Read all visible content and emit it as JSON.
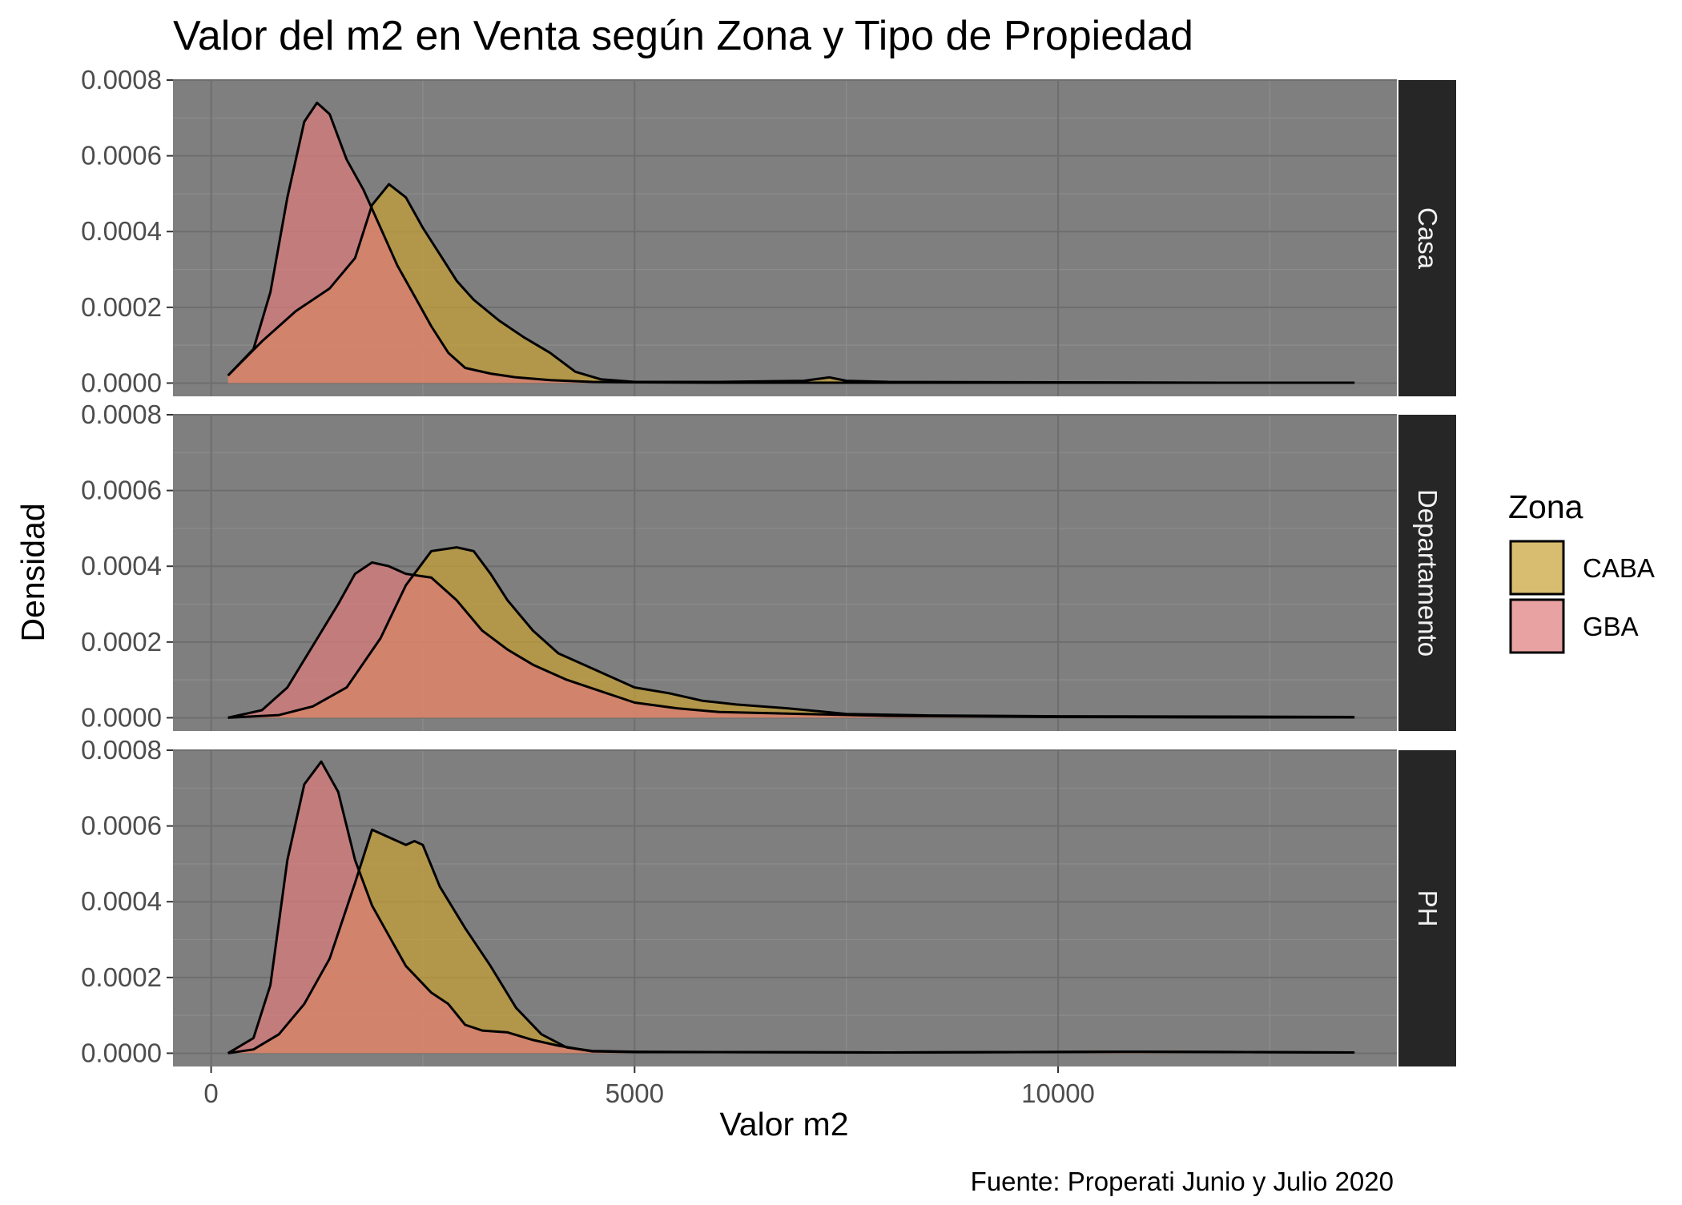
{
  "chart_data": {
    "type": "area",
    "title": "Valor del m2 en Venta según Zona y Tipo de Propiedad",
    "xlabel": "Valor m2",
    "ylabel": "Densidad",
    "caption": "Fuente: Properati Junio y Julio 2020",
    "xlim": [
      -450,
      14000
    ],
    "ylim": [
      -3.5e-05,
      0.0008
    ],
    "x_ticks": [
      0,
      5000,
      10000
    ],
    "x_tick_labels": [
      "0",
      "5000",
      "10000"
    ],
    "y_ticks": [
      0,
      0.0002,
      0.0004,
      0.0006,
      0.0008
    ],
    "y_tick_labels": [
      "0.0000",
      "0.0002",
      "0.0004",
      "0.0006",
      "0.0008"
    ],
    "grid": true,
    "legend": {
      "title": "Zona",
      "position": "right",
      "entries": [
        {
          "label": "CABA",
          "color": "#c8a032"
        },
        {
          "label": "GBA",
          "color": "#e07a7a"
        }
      ]
    },
    "colors": {
      "panel_background": "#7f7f7f",
      "strip_background": "#262626",
      "outline": "#000000",
      "fill_opacity": 0.7
    },
    "facets": [
      {
        "label": "Casa",
        "series": [
          {
            "name": "CABA",
            "x": [
              200,
              600,
              1000,
              1400,
              1700,
              1900,
              2100,
              2300,
              2500,
              2700,
              2900,
              3100,
              3400,
              3700,
              4000,
              4300,
              4600,
              5000,
              6000,
              7000,
              7300,
              7500,
              8000,
              10000,
              12000,
              13500
            ],
            "y": [
              2e-05,
              0.00011,
              0.00019,
              0.00025,
              0.00033,
              0.00047,
              0.000525,
              0.00049,
              0.00041,
              0.00034,
              0.00027,
              0.00022,
              0.000165,
              0.00012,
              8e-05,
              3e-05,
              1e-05,
              3e-06,
              3e-06,
              6e-06,
              1.5e-05,
              6e-06,
              3e-06,
              2e-06,
              1e-06,
              1e-06
            ]
          },
          {
            "name": "GBA",
            "x": [
              200,
              500,
              700,
              900,
              1100,
              1250,
              1400,
              1600,
              1800,
              2000,
              2200,
              2400,
              2600,
              2800,
              3000,
              3300,
              3600,
              4000,
              4500,
              5000,
              6000,
              8000,
              10000,
              13500
            ],
            "y": [
              2e-05,
              9e-05,
              0.00024,
              0.00049,
              0.00069,
              0.00074,
              0.00071,
              0.00059,
              0.00051,
              0.00041,
              0.00031,
              0.00023,
              0.00015,
              8e-05,
              4e-05,
              2.5e-05,
              1.5e-05,
              8e-06,
              3e-06,
              2e-06,
              1e-06,
              1e-06,
              1e-06,
              1e-06
            ]
          }
        ]
      },
      {
        "label": "Departamento",
        "series": [
          {
            "name": "CABA",
            "x": [
              200,
              800,
              1200,
              1600,
              2000,
              2300,
              2600,
              2900,
              3100,
              3300,
              3500,
              3800,
              4100,
              4500,
              5000,
              5400,
              5800,
              6200,
              6800,
              7500,
              8500,
              10000,
              12000,
              13500
            ],
            "y": [
              0.0,
              7e-06,
              3e-05,
              8e-05,
              0.00021,
              0.00035,
              0.00044,
              0.00045,
              0.00044,
              0.00038,
              0.00031,
              0.00023,
              0.00017,
              0.00013,
              8e-05,
              6.5e-05,
              4.5e-05,
              3.5e-05,
              2.5e-05,
              1e-05,
              6e-06,
              4e-06,
              3e-06,
              2e-06
            ]
          },
          {
            "name": "GBA",
            "x": [
              200,
              600,
              900,
              1200,
              1500,
              1700,
              1900,
              2100,
              2300,
              2600,
              2900,
              3200,
              3500,
              3800,
              4200,
              4600,
              5000,
              5500,
              6000,
              7000,
              8000,
              10000,
              12000,
              13500
            ],
            "y": [
              0.0,
              2e-05,
              8e-05,
              0.00019,
              0.0003,
              0.00038,
              0.00041,
              0.0004,
              0.00038,
              0.00037,
              0.00031,
              0.00023,
              0.00018,
              0.00014,
              0.0001,
              7e-05,
              4e-05,
              2.5e-05,
              1.5e-05,
              1e-05,
              5e-06,
              2e-06,
              1e-06,
              1e-06
            ]
          }
        ]
      },
      {
        "label": "PH",
        "series": [
          {
            "name": "CABA",
            "x": [
              200,
              500,
              800,
              1100,
              1400,
              1700,
              1900,
              2100,
              2300,
              2400,
              2500,
              2700,
              3000,
              3300,
              3600,
              3900,
              4200,
              4500,
              5000,
              6000,
              8000,
              11000,
              13500
            ],
            "y": [
              0.0,
              1e-05,
              5e-05,
              0.00013,
              0.00025,
              0.00045,
              0.00059,
              0.00057,
              0.00055,
              0.00056,
              0.00055,
              0.00044,
              0.00033,
              0.00023,
              0.00012,
              5e-05,
              1.5e-05,
              6e-06,
              4e-06,
              3e-06,
              2e-06,
              4e-06,
              2e-06
            ]
          },
          {
            "name": "GBA",
            "x": [
              200,
              500,
              700,
              900,
              1100,
              1300,
              1500,
              1700,
              1900,
              2100,
              2300,
              2600,
              2800,
              3000,
              3200,
              3500,
              3800,
              4100,
              4500,
              5000,
              6000,
              8000,
              11000,
              13500
            ],
            "y": [
              0.0,
              4e-05,
              0.00018,
              0.00051,
              0.00071,
              0.00077,
              0.00069,
              0.00051,
              0.00039,
              0.00031,
              0.00023,
              0.00016,
              0.00013,
              7.5e-05,
              6e-05,
              5.5e-05,
              3.5e-05,
              2e-05,
              5e-06,
              3e-06,
              3e-06,
              2e-06,
              4e-06,
              2e-06
            ]
          }
        ]
      }
    ]
  }
}
